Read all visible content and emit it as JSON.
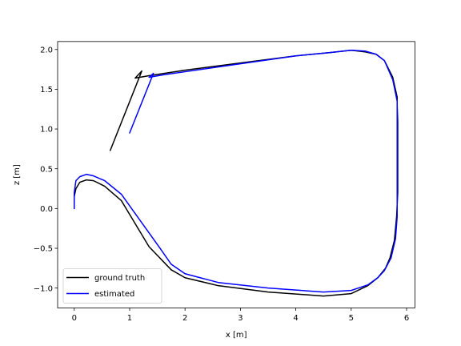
{
  "chart_data": {
    "type": "line",
    "title": "",
    "xlabel": "x [m]",
    "ylabel": "z [m]",
    "xlim": [
      -0.3,
      6.15
    ],
    "ylim": [
      -1.25,
      2.1
    ],
    "xticks": [
      0,
      1,
      2,
      3,
      4,
      5,
      6
    ],
    "yticks": [
      -1.0,
      -0.5,
      0.0,
      0.5,
      1.0,
      1.5,
      2.0
    ],
    "grid": false,
    "legend_position": "lower-left",
    "series": [
      {
        "name": "ground truth",
        "color": "#000000",
        "x": [
          0.65,
          1.22,
          1.1,
          1.35,
          2.0,
          3.0,
          4.0,
          4.6,
          5.0,
          5.25,
          5.45,
          5.6,
          5.75,
          5.83,
          5.83,
          5.84,
          5.84,
          5.84,
          5.84,
          5.82,
          5.78,
          5.7,
          5.62,
          5.48,
          5.3,
          5.0,
          4.5,
          3.5,
          2.6,
          2.0,
          1.75,
          1.35,
          0.85,
          0.55,
          0.35,
          0.22,
          0.1,
          0.03,
          0.0,
          0.0
        ],
        "y": [
          0.73,
          1.73,
          1.64,
          1.67,
          1.74,
          1.83,
          1.92,
          1.96,
          1.99,
          1.97,
          1.94,
          1.86,
          1.65,
          1.4,
          1.3,
          1.1,
          0.8,
          0.5,
          0.2,
          -0.1,
          -0.4,
          -0.62,
          -0.75,
          -0.87,
          -0.97,
          -1.07,
          -1.1,
          -1.05,
          -0.97,
          -0.87,
          -0.77,
          -0.48,
          0.1,
          0.28,
          0.35,
          0.36,
          0.33,
          0.25,
          0.15,
          0.0
        ]
      },
      {
        "name": "estimated",
        "color": "#0000ff",
        "x": [
          1.0,
          1.43,
          1.35,
          1.6,
          2.0,
          3.0,
          4.0,
          4.6,
          5.0,
          5.25,
          5.45,
          5.6,
          5.75,
          5.83,
          5.83,
          5.83,
          5.83,
          5.83,
          5.83,
          5.83,
          5.8,
          5.72,
          5.6,
          5.48,
          5.3,
          5.0,
          4.5,
          3.5,
          2.6,
          2.0,
          1.75,
          1.55,
          0.85,
          0.55,
          0.35,
          0.22,
          0.1,
          0.03,
          0.0,
          0.0
        ],
        "y": [
          0.95,
          1.7,
          1.65,
          1.68,
          1.72,
          1.82,
          1.92,
          1.96,
          1.99,
          1.98,
          1.94,
          1.86,
          1.62,
          1.35,
          1.25,
          1.0,
          0.6,
          0.2,
          0.0,
          -0.1,
          -0.38,
          -0.62,
          -0.78,
          -0.87,
          -0.96,
          -1.03,
          -1.05,
          -1.0,
          -0.93,
          -0.82,
          -0.7,
          -0.5,
          0.18,
          0.35,
          0.41,
          0.43,
          0.4,
          0.35,
          0.2,
          0.0
        ]
      }
    ]
  }
}
